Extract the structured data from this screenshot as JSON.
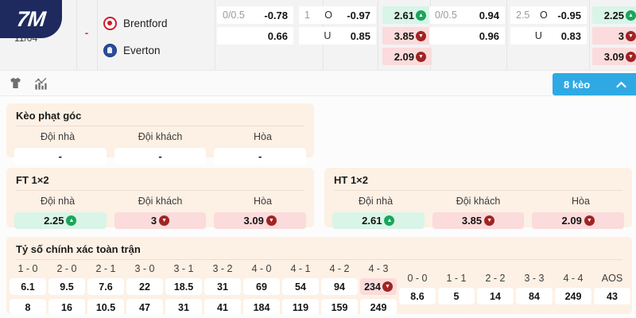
{
  "colors": {
    "navy": "#1e2a5e",
    "accent_blue": "#2fa9e4",
    "card_bg": "#fdf0e4",
    "up_bg": "#d8f5e7",
    "down_bg": "#fbdbdb",
    "up_icon": "#1aa55b",
    "down_icon": "#a02424",
    "separator_red": "#e23b3b"
  },
  "brand": {
    "logo_text": "7M"
  },
  "match": {
    "date": "11/04",
    "separator": "-",
    "home_team": "Brentford",
    "away_team": "Everton"
  },
  "odds_board": {
    "groups": [
      {
        "handicap_line": "0/0.5",
        "handicap_home": "-0.78",
        "handicap_away": "0.66",
        "total_line": "1",
        "over_label": "O",
        "over_odds": "-0.97",
        "under_label": "U",
        "under_odds": "0.85",
        "x12": [
          {
            "value": "2.61",
            "trend": "up"
          },
          {
            "value": "3.85",
            "trend": "down"
          },
          {
            "value": "2.09",
            "trend": "down"
          }
        ]
      },
      {
        "handicap_line": "0/0.5",
        "handicap_home": "0.94",
        "handicap_away": "0.96",
        "total_line": "2.5",
        "over_label": "O",
        "over_odds": "-0.95",
        "under_label": "U",
        "under_odds": "0.83",
        "x12": [
          {
            "value": "2.25",
            "trend": "up"
          },
          {
            "value": "3",
            "trend": "down"
          },
          {
            "value": "3.09",
            "trend": "down"
          }
        ]
      }
    ]
  },
  "toolbar": {
    "icons": [
      "jersey-icon",
      "stats-chart-icon"
    ],
    "odds_count": "8 kèo"
  },
  "corner_section": {
    "title": "Kèo phạt góc",
    "headers": [
      "Đội nhà",
      "Đội khách",
      "Hòa"
    ],
    "cells": [
      {
        "value": "-",
        "trend": null
      },
      {
        "value": "-",
        "trend": null
      },
      {
        "value": "-",
        "trend": null
      }
    ]
  },
  "ft_section": {
    "title": "FT 1×2",
    "headers": [
      "Đội nhà",
      "Đội khách",
      "Hòa"
    ],
    "cells": [
      {
        "value": "2.25",
        "trend": "up"
      },
      {
        "value": "3",
        "trend": "down"
      },
      {
        "value": "3.09",
        "trend": "down"
      }
    ]
  },
  "ht_section": {
    "title": "HT 1×2",
    "headers": [
      "Đội nhà",
      "Đội khách",
      "Hòa"
    ],
    "cells": [
      {
        "value": "2.61",
        "trend": "up"
      },
      {
        "value": "3.85",
        "trend": "down"
      },
      {
        "value": "2.09",
        "trend": "down"
      }
    ]
  },
  "correct_score_section": {
    "title": "Tỷ số chính xác toàn trận",
    "main_columns": [
      {
        "score": "1 - 0",
        "row1": {
          "value": "6.1",
          "trend": null
        },
        "row2": {
          "value": "8"
        }
      },
      {
        "score": "2 - 0",
        "row1": {
          "value": "9.5",
          "trend": null
        },
        "row2": {
          "value": "16"
        }
      },
      {
        "score": "2 - 1",
        "row1": {
          "value": "7.6",
          "trend": null
        },
        "row2": {
          "value": "10.5"
        }
      },
      {
        "score": "3 - 0",
        "row1": {
          "value": "22",
          "trend": null
        },
        "row2": {
          "value": "47"
        }
      },
      {
        "score": "3 - 1",
        "row1": {
          "value": "18.5",
          "trend": null
        },
        "row2": {
          "value": "31"
        }
      },
      {
        "score": "3 - 2",
        "row1": {
          "value": "31",
          "trend": null
        },
        "row2": {
          "value": "41"
        }
      },
      {
        "score": "4 - 0",
        "row1": {
          "value": "69",
          "trend": null
        },
        "row2": {
          "value": "184"
        }
      },
      {
        "score": "4 - 1",
        "row1": {
          "value": "54",
          "trend": null
        },
        "row2": {
          "value": "119"
        }
      },
      {
        "score": "4 - 2",
        "row1": {
          "value": "94",
          "trend": null
        },
        "row2": {
          "value": "159"
        }
      },
      {
        "score": "4 - 3",
        "row1": {
          "value": "234",
          "trend": "down"
        },
        "row2": {
          "value": "249"
        }
      }
    ],
    "draw_columns": [
      {
        "score": "0 - 0",
        "value": "8.6"
      },
      {
        "score": "1 - 1",
        "value": "5"
      },
      {
        "score": "2 - 2",
        "value": "14"
      },
      {
        "score": "3 - 3",
        "value": "84"
      },
      {
        "score": "4 - 4",
        "value": "249"
      },
      {
        "score": "AOS",
        "value": "43"
      }
    ]
  }
}
